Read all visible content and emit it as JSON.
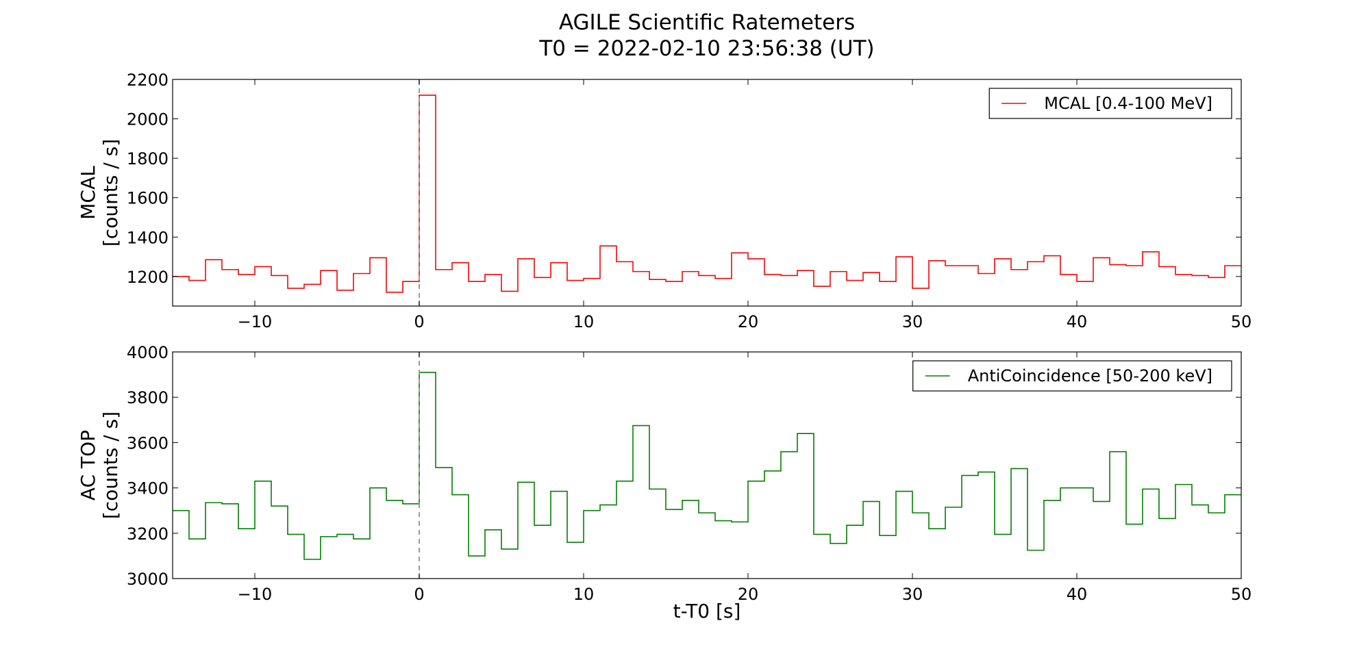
{
  "chart_data": {
    "type": "line",
    "title": "AGILE Scientific Ratemeters",
    "subtitle": "T0 = 2022-02-10 23:56:38 (UT)",
    "xlabel": "t-T0 [s]",
    "xlim": [
      -15,
      50
    ],
    "xticks": [
      -10,
      0,
      10,
      20,
      30,
      40,
      50
    ],
    "xtick_labels": [
      "−10",
      "0",
      "10",
      "20",
      "30",
      "40",
      "50"
    ],
    "vline_x": 0,
    "grid": false,
    "legend_position": "top-right",
    "panels": [
      {
        "ylabel_lines": [
          "MCAL",
          "[counts / s]"
        ],
        "ylim": [
          1050,
          2200
        ],
        "yticks": [
          1200,
          1400,
          1600,
          1800,
          2000,
          2200
        ],
        "ytick_labels": [
          "1200",
          "1400",
          "1600",
          "1800",
          "2000",
          "2200"
        ],
        "series": {
          "name": "MCAL [0.4-100 MeV]",
          "color": "#ff0000",
          "step": "post",
          "x": [
            -15,
            -14,
            -13,
            -12,
            -11,
            -10,
            -9,
            -8,
            -7,
            -6,
            -5,
            -4,
            -3,
            -2,
            -1,
            0,
            1,
            2,
            3,
            4,
            5,
            6,
            7,
            8,
            9,
            10,
            11,
            12,
            13,
            14,
            15,
            16,
            17,
            18,
            19,
            20,
            21,
            22,
            23,
            24,
            25,
            26,
            27,
            28,
            29,
            30,
            31,
            32,
            33,
            34,
            35,
            36,
            37,
            38,
            39,
            40,
            41,
            42,
            43,
            44,
            45,
            46,
            47,
            48,
            49,
            50
          ],
          "values": [
            1200,
            1180,
            1285,
            1235,
            1210,
            1250,
            1205,
            1140,
            1160,
            1230,
            1130,
            1215,
            1295,
            1120,
            1175,
            2120,
            1235,
            1270,
            1175,
            1210,
            1125,
            1290,
            1195,
            1270,
            1180,
            1190,
            1355,
            1275,
            1225,
            1185,
            1175,
            1225,
            1205,
            1190,
            1320,
            1290,
            1210,
            1205,
            1230,
            1150,
            1225,
            1180,
            1220,
            1175,
            1300,
            1140,
            1280,
            1255,
            1255,
            1215,
            1290,
            1235,
            1275,
            1305,
            1210,
            1175,
            1295,
            1260,
            1255,
            1325,
            1250,
            1210,
            1205,
            1195,
            1255,
            1255
          ]
        }
      },
      {
        "ylabel_lines": [
          "AC TOP",
          "[counts / s]"
        ],
        "ylim": [
          3000,
          4000
        ],
        "yticks": [
          3000,
          3200,
          3400,
          3600,
          3800,
          4000
        ],
        "ytick_labels": [
          "3000",
          "3200",
          "3400",
          "3600",
          "3800",
          "4000"
        ],
        "series": {
          "name": "AntiCoincidence [50-200 keV]",
          "color": "#008000",
          "step": "post",
          "x": [
            -15,
            -14,
            -13,
            -12,
            -11,
            -10,
            -9,
            -8,
            -7,
            -6,
            -5,
            -4,
            -3,
            -2,
            -1,
            0,
            1,
            2,
            3,
            4,
            5,
            6,
            7,
            8,
            9,
            10,
            11,
            12,
            13,
            14,
            15,
            16,
            17,
            18,
            19,
            20,
            21,
            22,
            23,
            24,
            25,
            26,
            27,
            28,
            29,
            30,
            31,
            32,
            33,
            34,
            35,
            36,
            37,
            38,
            39,
            40,
            41,
            42,
            43,
            44,
            45,
            46,
            47,
            48,
            49,
            50
          ],
          "values": [
            3300,
            3175,
            3335,
            3330,
            3220,
            3430,
            3320,
            3195,
            3085,
            3185,
            3195,
            3175,
            3400,
            3345,
            3330,
            3910,
            3490,
            3370,
            3100,
            3215,
            3130,
            3425,
            3235,
            3385,
            3160,
            3300,
            3325,
            3430,
            3675,
            3395,
            3305,
            3345,
            3290,
            3255,
            3250,
            3430,
            3475,
            3560,
            3640,
            3195,
            3155,
            3235,
            3340,
            3190,
            3385,
            3290,
            3220,
            3315,
            3455,
            3470,
            3195,
            3485,
            3125,
            3345,
            3400,
            3400,
            3340,
            3560,
            3240,
            3395,
            3265,
            3415,
            3325,
            3290,
            3370,
            3370
          ]
        }
      }
    ]
  }
}
